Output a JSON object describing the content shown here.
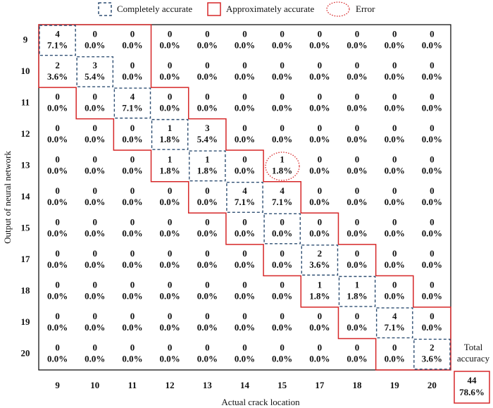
{
  "chart_data": {
    "type": "confusion_matrix",
    "legend": [
      "Completely accurate",
      "Approximately accurate",
      "Error"
    ],
    "x_label": "Actual crack location",
    "y_label": "Output of neural network",
    "row_labels": [
      9,
      10,
      11,
      12,
      13,
      14,
      15,
      17,
      18,
      19,
      20
    ],
    "col_labels": [
      9,
      10,
      11,
      12,
      13,
      14,
      15,
      17,
      18,
      19,
      20
    ],
    "values": [
      [
        4,
        0,
        0,
        0,
        0,
        0,
        0,
        0,
        0,
        0,
        0
      ],
      [
        2,
        3,
        0,
        0,
        0,
        0,
        0,
        0,
        0,
        0,
        0
      ],
      [
        0,
        0,
        4,
        0,
        0,
        0,
        0,
        0,
        0,
        0,
        0
      ],
      [
        0,
        0,
        0,
        1,
        3,
        0,
        0,
        0,
        0,
        0,
        0
      ],
      [
        0,
        0,
        0,
        1,
        1,
        0,
        1,
        0,
        0,
        0,
        0
      ],
      [
        0,
        0,
        0,
        0,
        0,
        4,
        4,
        0,
        0,
        0,
        0
      ],
      [
        0,
        0,
        0,
        0,
        0,
        0,
        0,
        0,
        0,
        0,
        0
      ],
      [
        0,
        0,
        0,
        0,
        0,
        0,
        0,
        2,
        0,
        0,
        0
      ],
      [
        0,
        0,
        0,
        0,
        0,
        0,
        0,
        1,
        1,
        0,
        0
      ],
      [
        0,
        0,
        0,
        0,
        0,
        0,
        0,
        0,
        0,
        4,
        0
      ],
      [
        0,
        0,
        0,
        0,
        0,
        0,
        0,
        0,
        0,
        0,
        2
      ]
    ],
    "percents": [
      [
        7.1,
        0,
        0,
        0,
        0,
        0,
        0,
        0,
        0,
        0,
        0
      ],
      [
        3.6,
        5.4,
        0,
        0,
        0,
        0,
        0,
        0,
        0,
        0,
        0
      ],
      [
        0,
        0,
        7.1,
        0,
        0,
        0,
        0,
        0,
        0,
        0,
        0
      ],
      [
        0,
        0,
        0,
        1.8,
        5.4,
        0,
        0,
        0,
        0,
        0,
        0
      ],
      [
        0,
        0,
        0,
        1.8,
        1.8,
        0,
        1.8,
        0,
        0,
        0,
        0
      ],
      [
        0,
        0,
        0,
        0,
        0,
        7.1,
        7.1,
        0,
        0,
        0,
        0
      ],
      [
        0,
        0,
        0,
        0,
        0,
        0,
        0,
        0,
        0,
        0,
        0
      ],
      [
        0,
        0,
        0,
        0,
        0,
        0,
        0,
        3.6,
        0,
        0,
        0
      ],
      [
        0,
        0,
        0,
        0,
        0,
        0,
        0,
        1.8,
        1.8,
        0,
        0
      ],
      [
        0,
        0,
        0,
        0,
        0,
        0,
        0,
        0,
        0,
        7.1,
        0
      ],
      [
        0,
        0,
        0,
        0,
        0,
        0,
        0,
        0,
        0,
        0,
        3.6
      ]
    ],
    "percent_labels": [
      [
        "7.1%",
        "0.0%",
        "0.0%",
        "0.0%",
        "0.0%",
        "0.0%",
        "0.0%",
        "0.0%",
        "0.0%",
        "0.0%",
        "0.0%"
      ],
      [
        "3.6%",
        "5.4%",
        "0.0%",
        "0.0%",
        "0.0%",
        "0.0%",
        "0.0%",
        "0.0%",
        "0.0%",
        "0.0%",
        "0.0%"
      ],
      [
        "0.0%",
        "0.0%",
        "7.1%",
        "0.0%",
        "0.0%",
        "0.0%",
        "0.0%",
        "0.0%",
        "0.0%",
        "0.0%",
        "0.0%"
      ],
      [
        "0.0%",
        "0.0%",
        "0.0%",
        "1.8%",
        "5.4%",
        "0.0%",
        "0.0%",
        "0.0%",
        "0.0%",
        "0.0%",
        "0.0%"
      ],
      [
        "0.0%",
        "0.0%",
        "0.0%",
        "1.8%",
        "1.8%",
        "0.0%",
        "1.8%",
        "0.0%",
        "0.0%",
        "0.0%",
        "0.0%"
      ],
      [
        "0.0%",
        "0.0%",
        "0.0%",
        "0.0%",
        "0.0%",
        "7.1%",
        "7.1%",
        "0.0%",
        "0.0%",
        "0.0%",
        "0.0%"
      ],
      [
        "0.0%",
        "0.0%",
        "0.0%",
        "0.0%",
        "0.0%",
        "0.0%",
        "0.0%",
        "0.0%",
        "0.0%",
        "0.0%",
        "0.0%"
      ],
      [
        "0.0%",
        "0.0%",
        "0.0%",
        "0.0%",
        "0.0%",
        "0.0%",
        "0.0%",
        "3.6%",
        "0.0%",
        "0.0%",
        "0.0%"
      ],
      [
        "0.0%",
        "0.0%",
        "0.0%",
        "0.0%",
        "0.0%",
        "0.0%",
        "0.0%",
        "1.8%",
        "1.8%",
        "0.0%",
        "0.0%"
      ],
      [
        "0.0%",
        "0.0%",
        "0.0%",
        "0.0%",
        "0.0%",
        "0.0%",
        "0.0%",
        "0.0%",
        "0.0%",
        "7.1%",
        "0.0%"
      ],
      [
        "0.0%",
        "0.0%",
        "0.0%",
        "0.0%",
        "0.0%",
        "0.0%",
        "0.0%",
        "0.0%",
        "0.0%",
        "0.0%",
        "3.6%"
      ]
    ],
    "total_title": [
      "Total",
      "accuracy"
    ],
    "total": 44,
    "total_percent": 78.6,
    "total_percent_label": "78.6%"
  }
}
